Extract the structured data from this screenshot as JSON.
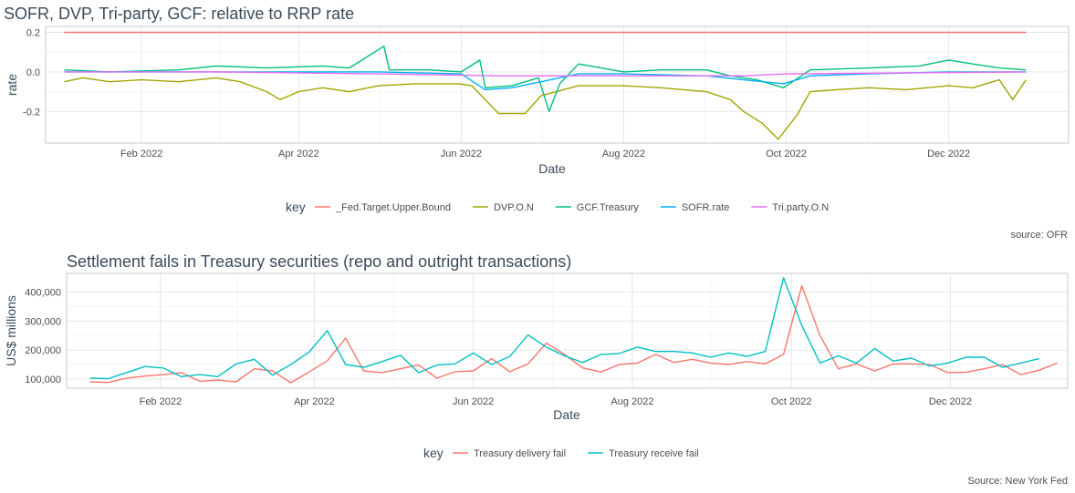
{
  "chart_data": [
    {
      "type": "line",
      "title": "SOFR, DVP, Tri-party, GCF: relative to RRP rate",
      "xlabel": "Date",
      "ylabel": "rate",
      "x_range": [
        "2021-12-27",
        "2023-01-15"
      ],
      "ylim": [
        -0.36,
        0.23
      ],
      "x_ticks": [
        {
          "date": "2022-02-01",
          "label": "Feb 2022"
        },
        {
          "date": "2022-04-01",
          "label": "Apr 2022"
        },
        {
          "date": "2022-06-01",
          "label": "Jun 2022"
        },
        {
          "date": "2022-08-01",
          "label": "Aug 2022"
        },
        {
          "date": "2022-10-01",
          "label": "Oct 2022"
        },
        {
          "date": "2022-12-01",
          "label": "Dec 2022"
        }
      ],
      "y_ticks": [
        {
          "value": 0.2,
          "label": "0.2"
        },
        {
          "value": 0.0,
          "label": "0.0"
        },
        {
          "value": -0.2,
          "label": "-0.2"
        }
      ],
      "grid": true,
      "legend_title": "key",
      "legend_position": "bottom",
      "caption": "source: OFR",
      "series": [
        {
          "name": "_Fed.Target.Upper.Bound",
          "color": "#F8766D",
          "points": [
            [
              "2022-01-03",
              0.2
            ],
            [
              "2022-12-30",
              0.2
            ]
          ]
        },
        {
          "name": "DVP.O.N",
          "color": "#A3A500",
          "points": [
            [
              "2022-01-03",
              -0.05
            ],
            [
              "2022-01-10",
              -0.03
            ],
            [
              "2022-01-20",
              -0.05
            ],
            [
              "2022-02-01",
              -0.04
            ],
            [
              "2022-02-15",
              -0.05
            ],
            [
              "2022-03-01",
              -0.03
            ],
            [
              "2022-03-10",
              -0.05
            ],
            [
              "2022-03-20",
              -0.1
            ],
            [
              "2022-03-25",
              -0.14
            ],
            [
              "2022-04-01",
              -0.1
            ],
            [
              "2022-04-10",
              -0.08
            ],
            [
              "2022-04-20",
              -0.1
            ],
            [
              "2022-05-01",
              -0.07
            ],
            [
              "2022-05-15",
              -0.06
            ],
            [
              "2022-05-31",
              -0.06
            ],
            [
              "2022-06-05",
              -0.07
            ],
            [
              "2022-06-10",
              -0.14
            ],
            [
              "2022-06-15",
              -0.21
            ],
            [
              "2022-06-25",
              -0.21
            ],
            [
              "2022-07-01",
              -0.12
            ],
            [
              "2022-07-15",
              -0.07
            ],
            [
              "2022-08-01",
              -0.07
            ],
            [
              "2022-08-15",
              -0.08
            ],
            [
              "2022-09-01",
              -0.1
            ],
            [
              "2022-09-10",
              -0.14
            ],
            [
              "2022-09-15",
              -0.2
            ],
            [
              "2022-09-22",
              -0.26
            ],
            [
              "2022-09-28",
              -0.34
            ],
            [
              "2022-10-05",
              -0.22
            ],
            [
              "2022-10-10",
              -0.1
            ],
            [
              "2022-10-20",
              -0.09
            ],
            [
              "2022-11-01",
              -0.08
            ],
            [
              "2022-11-15",
              -0.09
            ],
            [
              "2022-12-01",
              -0.07
            ],
            [
              "2022-12-10",
              -0.08
            ],
            [
              "2022-12-20",
              -0.04
            ],
            [
              "2022-12-25",
              -0.14
            ],
            [
              "2022-12-30",
              -0.04
            ]
          ]
        },
        {
          "name": "GCF.Treasury",
          "color": "#00BF7D",
          "points": [
            [
              "2022-01-03",
              0.01
            ],
            [
              "2022-01-20",
              0.0
            ],
            [
              "2022-02-15",
              0.01
            ],
            [
              "2022-03-01",
              0.03
            ],
            [
              "2022-03-20",
              0.02
            ],
            [
              "2022-04-10",
              0.03
            ],
            [
              "2022-04-20",
              0.02
            ],
            [
              "2022-05-03",
              0.13
            ],
            [
              "2022-05-05",
              0.01
            ],
            [
              "2022-05-20",
              0.01
            ],
            [
              "2022-06-01",
              0.0
            ],
            [
              "2022-06-08",
              0.06
            ],
            [
              "2022-06-10",
              -0.08
            ],
            [
              "2022-06-20",
              -0.07
            ],
            [
              "2022-06-30",
              -0.03
            ],
            [
              "2022-07-04",
              -0.2
            ],
            [
              "2022-07-08",
              -0.06
            ],
            [
              "2022-07-15",
              0.04
            ],
            [
              "2022-08-01",
              0.0
            ],
            [
              "2022-08-15",
              0.01
            ],
            [
              "2022-09-01",
              0.01
            ],
            [
              "2022-09-10",
              -0.02
            ],
            [
              "2022-09-20",
              -0.04
            ],
            [
              "2022-09-30",
              -0.08
            ],
            [
              "2022-10-10",
              0.01
            ],
            [
              "2022-11-01",
              0.02
            ],
            [
              "2022-11-20",
              0.03
            ],
            [
              "2022-12-01",
              0.06
            ],
            [
              "2022-12-10",
              0.04
            ],
            [
              "2022-12-20",
              0.02
            ],
            [
              "2022-12-30",
              0.01
            ]
          ]
        },
        {
          "name": "SOFR.rate",
          "color": "#00B0F6",
          "points": [
            [
              "2022-01-03",
              0.0
            ],
            [
              "2022-02-01",
              0.0
            ],
            [
              "2022-03-01",
              0.0
            ],
            [
              "2022-04-01",
              0.0
            ],
            [
              "2022-05-01",
              0.0
            ],
            [
              "2022-06-01",
              -0.01
            ],
            [
              "2022-06-10",
              -0.09
            ],
            [
              "2022-06-20",
              -0.08
            ],
            [
              "2022-07-01",
              -0.05
            ],
            [
              "2022-07-15",
              -0.01
            ],
            [
              "2022-08-01",
              -0.01
            ],
            [
              "2022-09-01",
              -0.02
            ],
            [
              "2022-09-15",
              -0.04
            ],
            [
              "2022-09-30",
              -0.06
            ],
            [
              "2022-10-10",
              -0.02
            ],
            [
              "2022-11-01",
              -0.01
            ],
            [
              "2022-12-01",
              0.0
            ],
            [
              "2022-12-30",
              0.0
            ]
          ]
        },
        {
          "name": "Tri.party.O.N",
          "color": "#E76BF3",
          "points": [
            [
              "2022-01-03",
              0.0
            ],
            [
              "2022-03-01",
              0.0
            ],
            [
              "2022-05-01",
              -0.01
            ],
            [
              "2022-06-15",
              -0.02
            ],
            [
              "2022-08-01",
              -0.02
            ],
            [
              "2022-09-15",
              -0.02
            ],
            [
              "2022-10-01",
              -0.01
            ],
            [
              "2022-12-30",
              0.0
            ]
          ]
        }
      ]
    },
    {
      "type": "line",
      "title": "Settlement fails in Treasury securities (repo and outright transactions)",
      "xlabel": "Date",
      "ylabel": "US$ millions",
      "x_range": [
        "2021-12-27",
        "2023-01-15"
      ],
      "ylim": [
        68000,
        465000
      ],
      "x_ticks": [
        {
          "date": "2022-02-01",
          "label": "Feb 2022"
        },
        {
          "date": "2022-04-01",
          "label": "Apr 2022"
        },
        {
          "date": "2022-06-01",
          "label": "Jun 2022"
        },
        {
          "date": "2022-08-01",
          "label": "Aug 2022"
        },
        {
          "date": "2022-10-01",
          "label": "Oct 2022"
        },
        {
          "date": "2022-12-01",
          "label": "Dec 2022"
        }
      ],
      "y_ticks": [
        {
          "value": 400000,
          "label": "400,000"
        },
        {
          "value": 300000,
          "label": "300,000"
        },
        {
          "value": 200000,
          "label": "200,000"
        },
        {
          "value": 100000,
          "label": "100,000"
        }
      ],
      "grid": true,
      "legend_title": "key",
      "legend_position": "bottom",
      "caption": "Source: New York Fed",
      "series": [
        {
          "name": "Treasury delivery fail",
          "color": "#F8766D",
          "points": [
            [
              "2022-01-05",
              90000
            ],
            [
              "2022-01-12",
              88000
            ],
            [
              "2022-01-19",
              103000
            ],
            [
              "2022-01-26",
              110000
            ],
            [
              "2022-02-02",
              115000
            ],
            [
              "2022-02-09",
              122000
            ],
            [
              "2022-02-16",
              92000
            ],
            [
              "2022-02-23",
              96000
            ],
            [
              "2022-03-02",
              90000
            ],
            [
              "2022-03-09",
              135000
            ],
            [
              "2022-03-16",
              128000
            ],
            [
              "2022-03-23",
              87000
            ],
            [
              "2022-03-30",
              124000
            ],
            [
              "2022-04-06",
              163000
            ],
            [
              "2022-04-13",
              241000
            ],
            [
              "2022-04-20",
              128000
            ],
            [
              "2022-04-27",
              122000
            ],
            [
              "2022-05-04",
              135000
            ],
            [
              "2022-05-11",
              148000
            ],
            [
              "2022-05-18",
              103000
            ],
            [
              "2022-05-25",
              125000
            ],
            [
              "2022-06-01",
              128000
            ],
            [
              "2022-06-08",
              170000
            ],
            [
              "2022-06-15",
              125000
            ],
            [
              "2022-06-22",
              152000
            ],
            [
              "2022-06-29",
              224000
            ],
            [
              "2022-07-06",
              185000
            ],
            [
              "2022-07-13",
              138000
            ],
            [
              "2022-07-20",
              124000
            ],
            [
              "2022-07-27",
              150000
            ],
            [
              "2022-08-03",
              155000
            ],
            [
              "2022-08-10",
              185000
            ],
            [
              "2022-08-17",
              157000
            ],
            [
              "2022-08-24",
              168000
            ],
            [
              "2022-08-31",
              155000
            ],
            [
              "2022-09-07",
              150000
            ],
            [
              "2022-09-14",
              160000
            ],
            [
              "2022-09-21",
              152000
            ],
            [
              "2022-09-28",
              185000
            ],
            [
              "2022-10-05",
              422000
            ],
            [
              "2022-10-12",
              250000
            ],
            [
              "2022-10-19",
              135000
            ],
            [
              "2022-10-26",
              152000
            ],
            [
              "2022-11-02",
              128000
            ],
            [
              "2022-11-09",
              152000
            ],
            [
              "2022-11-16",
              152000
            ],
            [
              "2022-11-23",
              150000
            ],
            [
              "2022-11-30",
              122000
            ],
            [
              "2022-12-07",
              123000
            ],
            [
              "2022-12-14",
              135000
            ],
            [
              "2022-12-21",
              150000
            ],
            [
              "2022-12-28",
              115000
            ],
            [
              "2023-01-04",
              130000
            ],
            [
              "2023-01-11",
              155000
            ]
          ]
        },
        {
          "name": "Treasury receive fail",
          "color": "#00BFC4",
          "points": [
            [
              "2022-01-05",
              103000
            ],
            [
              "2022-01-12",
              101000
            ],
            [
              "2022-01-19",
              122000
            ],
            [
              "2022-01-26",
              143000
            ],
            [
              "2022-02-02",
              138000
            ],
            [
              "2022-02-09",
              108000
            ],
            [
              "2022-02-16",
              115000
            ],
            [
              "2022-02-23",
              108000
            ],
            [
              "2022-03-02",
              152000
            ],
            [
              "2022-03-09",
              168000
            ],
            [
              "2022-03-16",
              113000
            ],
            [
              "2022-03-23",
              150000
            ],
            [
              "2022-03-30",
              193000
            ],
            [
              "2022-04-06",
              267000
            ],
            [
              "2022-04-13",
              150000
            ],
            [
              "2022-04-20",
              140000
            ],
            [
              "2022-04-27",
              160000
            ],
            [
              "2022-05-04",
              182000
            ],
            [
              "2022-05-11",
              122000
            ],
            [
              "2022-05-18",
              148000
            ],
            [
              "2022-05-25",
              152000
            ],
            [
              "2022-06-01",
              190000
            ],
            [
              "2022-06-08",
              150000
            ],
            [
              "2022-06-15",
              178000
            ],
            [
              "2022-06-22",
              252000
            ],
            [
              "2022-06-29",
              210000
            ],
            [
              "2022-07-06",
              180000
            ],
            [
              "2022-07-13",
              157000
            ],
            [
              "2022-07-20",
              185000
            ],
            [
              "2022-07-27",
              188000
            ],
            [
              "2022-08-03",
              210000
            ],
            [
              "2022-08-10",
              195000
            ],
            [
              "2022-08-17",
              195000
            ],
            [
              "2022-08-24",
              190000
            ],
            [
              "2022-08-31",
              175000
            ],
            [
              "2022-09-07",
              190000
            ],
            [
              "2022-09-14",
              178000
            ],
            [
              "2022-09-21",
              195000
            ],
            [
              "2022-09-28",
              450000
            ],
            [
              "2022-10-05",
              285000
            ],
            [
              "2022-10-12",
              155000
            ],
            [
              "2022-10-19",
              180000
            ],
            [
              "2022-10-26",
              155000
            ],
            [
              "2022-11-02",
              205000
            ],
            [
              "2022-11-09",
              162000
            ],
            [
              "2022-11-16",
              172000
            ],
            [
              "2022-11-23",
              145000
            ],
            [
              "2022-11-30",
              155000
            ],
            [
              "2022-12-07",
              175000
            ],
            [
              "2022-12-14",
              175000
            ],
            [
              "2022-12-21",
              140000
            ],
            [
              "2022-12-28",
              155000
            ],
            [
              "2023-01-04",
              170000
            ]
          ]
        }
      ]
    }
  ]
}
